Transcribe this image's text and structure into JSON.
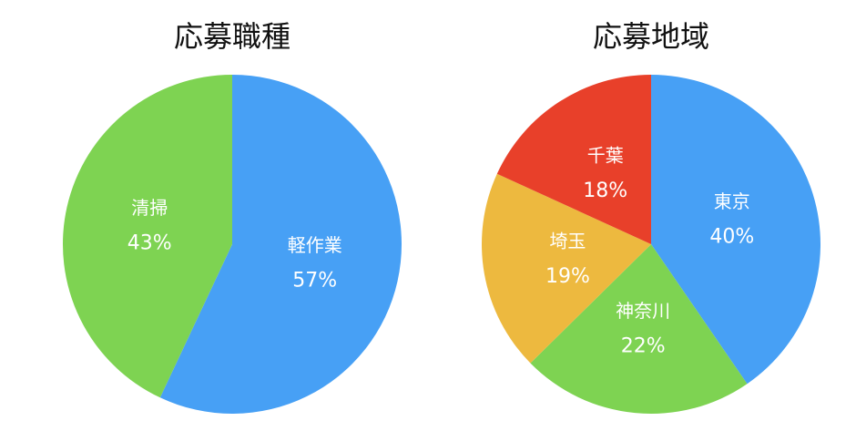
{
  "chart_data": [
    {
      "type": "pie",
      "title": "応募職種",
      "categories": [
        "軽作業",
        "清掃"
      ],
      "values": [
        57,
        43
      ],
      "value_labels": [
        "57%",
        "43%"
      ],
      "colors": [
        "#47a0f5",
        "#7ed352"
      ]
    },
    {
      "type": "pie",
      "title": "応募地域",
      "categories": [
        "東京",
        "神奈川",
        "埼玉",
        "千葉"
      ],
      "values": [
        40,
        22,
        19,
        18
      ],
      "value_labels": [
        "40%",
        "22%",
        "19%",
        "18%"
      ],
      "colors": [
        "#47a0f5",
        "#7ed352",
        "#edb93f",
        "#e8402a"
      ]
    }
  ]
}
